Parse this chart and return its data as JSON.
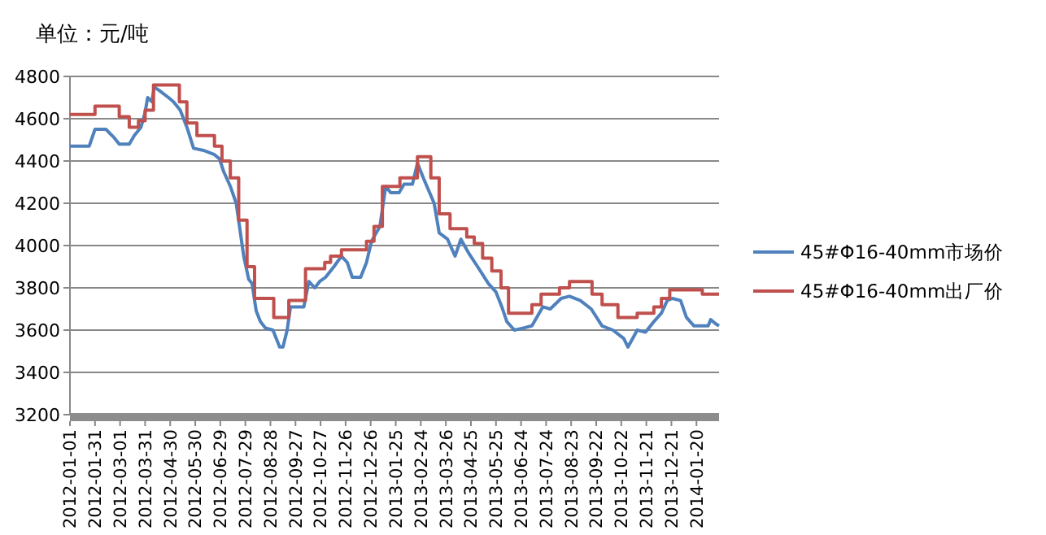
{
  "chart_data": {
    "type": "line",
    "ylabel": "单位：元/吨",
    "xlim": [
      "2012-01-01",
      "2014-02-16"
    ],
    "xticks": [
      "2012-01-01",
      "2012-01-31",
      "2012-03-01",
      "2012-03-31",
      "2012-04-30",
      "2012-05-30",
      "2012-06-29",
      "2012-07-29",
      "2012-08-28",
      "2012-09-27",
      "2012-10-27",
      "2012-11-26",
      "2012-12-26",
      "2013-01-25",
      "2013-02-24",
      "2013-03-26",
      "2013-04-25",
      "2013-05-25",
      "2013-06-24",
      "2013-07-24",
      "2013-08-23",
      "2013-09-22",
      "2013-10-22",
      "2013-11-21",
      "2013-12-21",
      "2014-01-20"
    ],
    "ylim": [
      3200,
      4800
    ],
    "yticks": [
      3200,
      3400,
      3600,
      3800,
      4000,
      4200,
      4400,
      4600,
      4800
    ],
    "grid": "y",
    "legend": "right",
    "marker": "none",
    "line_style": "solid",
    "series": [
      {
        "name": "45#Φ16-40mm市场价",
        "color": "#4f81bd",
        "x": [
          "2012-01-01",
          "2012-01-24",
          "2012-01-31",
          "2012-02-13",
          "2012-02-23",
          "2012-02-29",
          "2012-03-12",
          "2012-03-18",
          "2012-03-26",
          "2012-03-31",
          "2012-04-03",
          "2012-04-08",
          "2012-04-11",
          "2012-04-18",
          "2012-04-28",
          "2012-05-04",
          "2012-05-12",
          "2012-05-20",
          "2012-05-28",
          "2012-06-09",
          "2012-06-22",
          "2012-06-28",
          "2012-07-03",
          "2012-07-11",
          "2012-07-18",
          "2012-07-22",
          "2012-07-27",
          "2012-08-02",
          "2012-08-06",
          "2012-08-11",
          "2012-08-16",
          "2012-08-22",
          "2012-08-31",
          "2012-09-08",
          "2012-09-12",
          "2012-09-17",
          "2012-09-21",
          "2012-10-07",
          "2012-10-13",
          "2012-10-20",
          "2012-10-26",
          "2012-11-02",
          "2012-11-12",
          "2012-11-21",
          "2012-11-28",
          "2012-12-04",
          "2012-12-14",
          "2012-12-21",
          "2012-12-27",
          "2013-01-06",
          "2013-01-13",
          "2013-01-19",
          "2013-01-29",
          "2013-02-04",
          "2013-02-14",
          "2013-02-20",
          "2013-02-27",
          "2013-03-12",
          "2013-03-18",
          "2013-03-28",
          "2013-04-06",
          "2013-04-13",
          "2013-04-23",
          "2013-05-03",
          "2013-05-16",
          "2013-05-25",
          "2013-06-01",
          "2013-06-07",
          "2013-06-16",
          "2013-06-27",
          "2013-07-07",
          "2013-07-20",
          "2013-07-29",
          "2013-08-11",
          "2013-08-21",
          "2013-09-03",
          "2013-09-16",
          "2013-09-29",
          "2013-10-12",
          "2013-10-25",
          "2013-10-30",
          "2013-11-06",
          "2013-11-10",
          "2013-11-20",
          "2013-11-30",
          "2013-12-09",
          "2013-12-16",
          "2013-12-22",
          "2014-01-01",
          "2014-01-08",
          "2014-01-17",
          "2014-02-03",
          "2014-02-06",
          "2014-02-12",
          "2014-02-16"
        ],
        "values": [
          4470,
          4470,
          4550,
          4550,
          4510,
          4480,
          4480,
          4520,
          4560,
          4630,
          4700,
          4680,
          4750,
          4730,
          4700,
          4680,
          4640,
          4560,
          4460,
          4450,
          4430,
          4410,
          4350,
          4280,
          4200,
          4090,
          3950,
          3840,
          3820,
          3690,
          3640,
          3610,
          3600,
          3520,
          3520,
          3600,
          3710,
          3710,
          3830,
          3800,
          3830,
          3850,
          3900,
          3950,
          3920,
          3850,
          3850,
          3920,
          4020,
          4090,
          4280,
          4250,
          4250,
          4290,
          4290,
          4390,
          4320,
          4200,
          4060,
          4030,
          3950,
          4030,
          3960,
          3900,
          3820,
          3780,
          3710,
          3640,
          3600,
          3610,
          3620,
          3710,
          3700,
          3750,
          3760,
          3740,
          3700,
          3620,
          3600,
          3560,
          3520,
          3570,
          3600,
          3590,
          3640,
          3680,
          3740,
          3750,
          3740,
          3660,
          3620,
          3620,
          3650,
          3630,
          3620
        ]
      },
      {
        "name": "45#Φ16-40mm出厂价",
        "type": "step",
        "color": "#c0504d",
        "x": [
          "2012-01-01",
          "2012-01-31",
          "2012-02-29",
          "2012-03-12",
          "2012-03-23",
          "2012-03-31",
          "2012-04-10",
          "2012-05-11",
          "2012-05-20",
          "2012-06-01",
          "2012-06-22",
          "2012-07-01",
          "2012-07-11",
          "2012-07-21",
          "2012-07-31",
          "2012-08-09",
          "2012-09-01",
          "2012-09-19",
          "2012-10-09",
          "2012-11-01",
          "2012-11-08",
          "2012-11-21",
          "2012-12-21",
          "2012-12-30",
          "2013-01-09",
          "2013-01-30",
          "2013-02-20",
          "2013-03-08",
          "2013-03-18",
          "2013-03-31",
          "2013-04-20",
          "2013-04-29",
          "2013-05-09",
          "2013-05-20",
          "2013-05-31",
          "2013-06-09",
          "2013-07-07",
          "2013-07-18",
          "2013-08-09",
          "2013-08-21",
          "2013-09-17",
          "2013-09-29",
          "2013-10-18",
          "2013-11-10",
          "2013-11-30",
          "2013-12-09",
          "2013-12-19",
          "2014-01-27",
          "2014-02-16"
        ],
        "values": [
          4620,
          4660,
          4610,
          4560,
          4590,
          4640,
          4760,
          4680,
          4580,
          4520,
          4470,
          4400,
          4320,
          4120,
          3900,
          3750,
          3660,
          3740,
          3890,
          3920,
          3950,
          3980,
          4020,
          4090,
          4280,
          4320,
          4420,
          4320,
          4150,
          4080,
          4040,
          4010,
          3940,
          3880,
          3800,
          3680,
          3720,
          3770,
          3800,
          3830,
          3770,
          3720,
          3660,
          3680,
          3710,
          3750,
          3790,
          3770,
          3770
        ]
      }
    ]
  }
}
